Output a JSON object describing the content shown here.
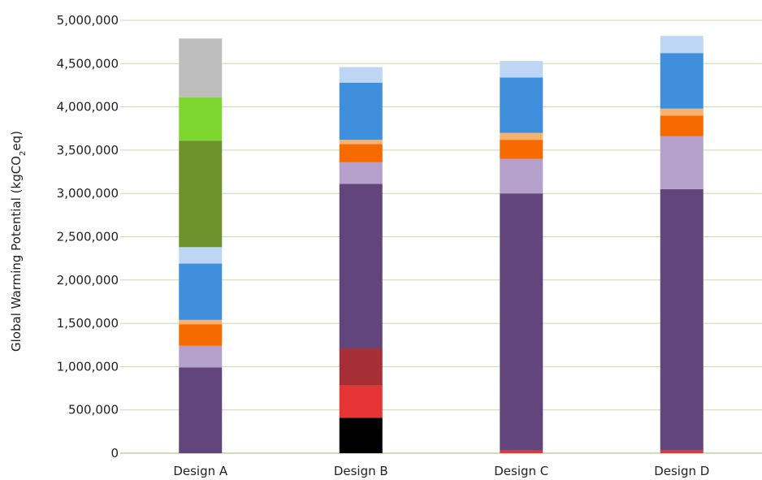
{
  "chart_data": {
    "type": "bar",
    "stacked": true,
    "categories": [
      "Design A",
      "Design B",
      "Design C",
      "Design D"
    ],
    "ylabel": "Global Warming Potential (kgCO",
    "ylabel_sub": "2",
    "ylabel_end": "eq)",
    "ylim": [
      0,
      5000000
    ],
    "yticks": [
      0,
      500000,
      1000000,
      1500000,
      2000000,
      2500000,
      3000000,
      3500000,
      4000000,
      4500000,
      5000000
    ],
    "ytick_labels": [
      "0",
      "500,000",
      "1,000,000",
      "1,500,000",
      "2,000,000",
      "2,500,000",
      "3,000,000",
      "3,500,000",
      "4,000,000",
      "4,500,000",
      "5,000,000"
    ],
    "grid": true,
    "legend": "none",
    "series": [
      {
        "color": "#000000",
        "values": [
          0,
          410000,
          0,
          0
        ]
      },
      {
        "color": "#e63333",
        "values": [
          0,
          370000,
          30000,
          30000
        ]
      },
      {
        "color": "#a62f36",
        "values": [
          0,
          430000,
          0,
          0
        ]
      },
      {
        "color": "#62457b",
        "values": [
          990000,
          1900000,
          2970000,
          3020000
        ]
      },
      {
        "color": "#b59fcb",
        "values": [
          250000,
          250000,
          400000,
          610000
        ]
      },
      {
        "color": "#f66a00",
        "values": [
          250000,
          210000,
          220000,
          240000
        ]
      },
      {
        "color": "#f8b26f",
        "values": [
          50000,
          50000,
          80000,
          80000
        ]
      },
      {
        "color": "#3f8fdd",
        "values": [
          650000,
          660000,
          640000,
          640000
        ]
      },
      {
        "color": "#bcd6f3",
        "values": [
          190000,
          180000,
          190000,
          200000
        ]
      },
      {
        "color": "#6e932c",
        "values": [
          1230000,
          0,
          0,
          0
        ]
      },
      {
        "color": "#7ed631",
        "values": [
          500000,
          0,
          0,
          0
        ]
      },
      {
        "color": "#bdbdbd",
        "values": [
          680000,
          0,
          0,
          0
        ]
      }
    ]
  }
}
